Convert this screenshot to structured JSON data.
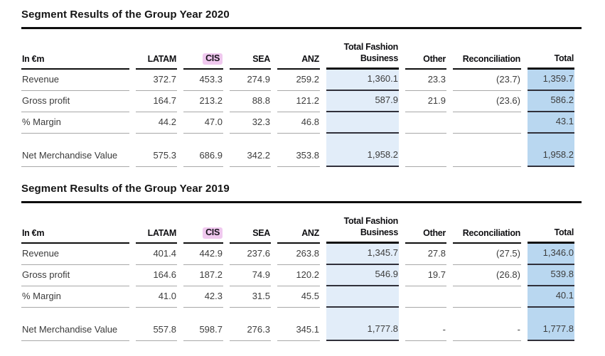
{
  "colors": {
    "highlight_pink": "#f0c9ef",
    "fashion_business_blue": "#e2edf9",
    "total_blue": "#b9d7f0",
    "rule_black": "#0e0e0e",
    "row_line_gray": "#a8a8a8",
    "row_line_dark": "#30303a"
  },
  "sections": [
    {
      "title": "Segment Results of the Group Year 2020",
      "unit_label": "In €m",
      "columns": [
        "LATAM",
        "CIS",
        "SEA",
        "ANZ",
        "Total Fashion Business",
        "Other",
        "Reconciliation",
        "Total"
      ],
      "rows": [
        {
          "label": "Revenue",
          "values": [
            "372.7",
            "453.3",
            "274.9",
            "259.2",
            "1,360.1",
            "23.3",
            "(23.7)",
            "1,359.7"
          ]
        },
        {
          "label": "Gross profit",
          "values": [
            "164.7",
            "213.2",
            "88.8",
            "121.2",
            "587.9",
            "21.9",
            "(23.6)",
            "586.2"
          ]
        },
        {
          "label": "% Margin",
          "values": [
            "44.2",
            "47.0",
            "32.3",
            "46.8",
            "",
            "",
            "",
            "43.1"
          ]
        },
        {
          "label": "Net Merchandise Value",
          "values": [
            "575.3",
            "686.9",
            "342.2",
            "353.8",
            "1,958.2",
            "",
            "",
            "1,958.2"
          ]
        }
      ]
    },
    {
      "title": "Segment Results of the Group Year 2019",
      "unit_label": "In €m",
      "columns": [
        "LATAM",
        "CIS",
        "SEA",
        "ANZ",
        "Total Fashion Business",
        "Other",
        "Reconciliation",
        "Total"
      ],
      "rows": [
        {
          "label": "Revenue",
          "values": [
            "401.4",
            "442.9",
            "237.6",
            "263.8",
            "1,345.7",
            "27.8",
            "(27.5)",
            "1,346.0"
          ]
        },
        {
          "label": "Gross profit",
          "values": [
            "164.6",
            "187.2",
            "74.9",
            "120.2",
            "546.9",
            "19.7",
            "(26.8)",
            "539.8"
          ]
        },
        {
          "label": "% Margin",
          "values": [
            "41.0",
            "42.3",
            "31.5",
            "45.5",
            "",
            "",
            "",
            "40.1"
          ]
        },
        {
          "label": "Net Merchandise Value",
          "values": [
            "557.8",
            "598.7",
            "276.3",
            "345.1",
            "1,777.8",
            "-",
            "-",
            "1,777.8"
          ]
        }
      ]
    }
  ]
}
